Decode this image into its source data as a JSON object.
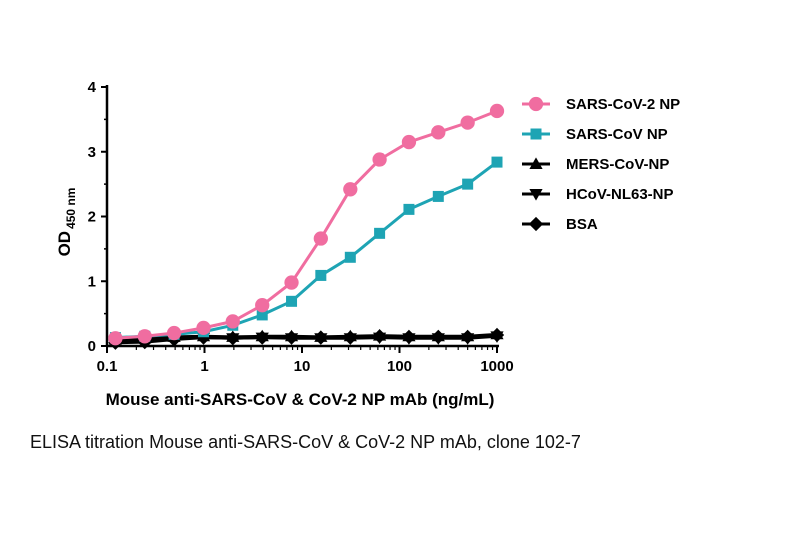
{
  "caption": "ELISA titration Mouse anti-SARS-CoV & CoV-2 NP mAb, clone 102-7",
  "chart_data": {
    "type": "line",
    "title": "",
    "xlabel": "Mouse anti-SARS-CoV & CoV-2 NP mAb (ng/mL)",
    "ylabel": "OD",
    "ylabel_subscript": "450 nm",
    "xscale": "log",
    "xlim": [
      0.1,
      1000
    ],
    "ylim": [
      0,
      4
    ],
    "xticks": [
      0.1,
      1,
      10,
      100,
      1000
    ],
    "xtick_labels": [
      "0.1",
      "1",
      "10",
      "100",
      "1000"
    ],
    "yticks": [
      0,
      1,
      2,
      3,
      4
    ],
    "ytick_labels": [
      "0",
      "1",
      "2",
      "3",
      "4"
    ],
    "grid": false,
    "legend_position": "right",
    "x": [
      0.122,
      0.244,
      0.488,
      0.977,
      1.95,
      3.91,
      7.81,
      15.6,
      31.3,
      62.5,
      125,
      250,
      500,
      1000
    ],
    "series": [
      {
        "name": "SARS-CoV-2 NP",
        "color": "#f06da0",
        "marker": "circle",
        "values": [
          0.12,
          0.15,
          0.2,
          0.28,
          0.38,
          0.63,
          0.98,
          1.66,
          2.42,
          2.88,
          3.15,
          3.3,
          3.45,
          3.63
        ]
      },
      {
        "name": "SARS-CoV NP",
        "color": "#1ea4b4",
        "marker": "square",
        "values": [
          0.13,
          0.15,
          0.18,
          0.22,
          0.32,
          0.48,
          0.69,
          1.09,
          1.37,
          1.74,
          2.11,
          2.31,
          2.5,
          2.84
        ]
      },
      {
        "name": "MERS-CoV-NP",
        "color": "#000000",
        "marker": "triangle-up",
        "values": [
          0.1,
          0.12,
          0.14,
          0.15,
          0.14,
          0.15,
          0.15,
          0.14,
          0.15,
          0.16,
          0.15,
          0.15,
          0.15,
          0.18
        ]
      },
      {
        "name": "HCoV-NL63-NP",
        "color": "#000000",
        "marker": "triangle-down",
        "values": [
          0.06,
          0.08,
          0.12,
          0.13,
          0.12,
          0.13,
          0.12,
          0.12,
          0.12,
          0.13,
          0.12,
          0.12,
          0.12,
          0.15
        ]
      },
      {
        "name": "BSA",
        "color": "#000000",
        "marker": "diamond",
        "values": [
          0.05,
          0.06,
          0.1,
          0.13,
          0.12,
          0.13,
          0.13,
          0.13,
          0.13,
          0.15,
          0.14,
          0.14,
          0.14,
          0.17
        ]
      }
    ]
  }
}
